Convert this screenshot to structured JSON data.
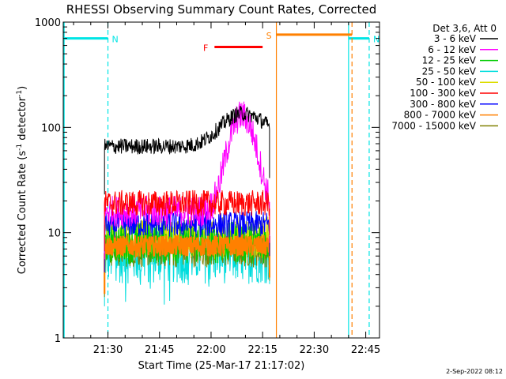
{
  "chart_data": {
    "type": "line",
    "title": "RHESSI Observing Summary Count Rates, Corrected",
    "xlabel": "Start Time (25-Mar-17 21:17:02)",
    "ylabel_main": "Corrected Count Rate (s",
    "ylabel_sup1": "-1",
    "ylabel_mid": " detector",
    "ylabel_sup2": "-1",
    "ylabel_end": ")",
    "ylabel": "Corrected Count Rate (s-1 detector-1)",
    "yscale": "log",
    "ylim": [
      1,
      1000
    ],
    "xlim_minutes": [
      0,
      92
    ],
    "x_ticks": [
      {
        "minute": 13,
        "label": "21:30"
      },
      {
        "minute": 28,
        "label": "21:45"
      },
      {
        "minute": 43,
        "label": "22:00"
      },
      {
        "minute": 58,
        "label": "22:15"
      },
      {
        "minute": 73,
        "label": "22:30"
      },
      {
        "minute": 88,
        "label": "22:45"
      }
    ],
    "y_ticks": [
      {
        "value": 1,
        "label": "1"
      },
      {
        "value": 10,
        "label": "10"
      },
      {
        "value": 100,
        "label": "100"
      },
      {
        "value": 1000,
        "label": "1000"
      }
    ],
    "legend_header": "Det 3,6, Att 0",
    "legend_placement": "right",
    "series": [
      {
        "name": "3 - 6 keV",
        "color": "#000000",
        "level": 66,
        "flare_peak": 135,
        "jitter": 0.03
      },
      {
        "name": "6 - 12 keV",
        "color": "#ff00ff",
        "level": 16,
        "flare_peak": 130,
        "jitter": 0.06
      },
      {
        "name": "12 - 25 keV",
        "color": "#00cc00",
        "level": 8,
        "flare_peak": 8,
        "jitter": 0.08
      },
      {
        "name": "25 - 50 keV",
        "color": "#00dddd",
        "level": 6.5,
        "flare_peak": 6.5,
        "jitter": 0.12
      },
      {
        "name": "50 - 100 keV",
        "color": "#dddd00",
        "level": 9,
        "flare_peak": 9,
        "jitter": 0.08
      },
      {
        "name": "100 - 300 keV",
        "color": "#ff0000",
        "level": 19,
        "flare_peak": 19,
        "jitter": 0.05
      },
      {
        "name": "300 - 800 keV",
        "color": "#0000ff",
        "level": 12,
        "flare_peak": 12,
        "jitter": 0.05
      },
      {
        "name": "800 - 7000 keV",
        "color": "#ff8000",
        "level": 7.5,
        "flare_peak": 7.5,
        "jitter": 0.04
      },
      {
        "name": "7000 - 15000 keV",
        "color": "#808000",
        "level": 7,
        "flare_peak": 7,
        "jitter": 0.07
      }
    ],
    "data_interval_minutes": [
      12,
      60
    ],
    "flare_peak_minute": 52,
    "annotations": [
      {
        "label": "N",
        "color": "#00e5e5",
        "bar": [
          0,
          13
        ],
        "bar_value": 700,
        "dashed_at": 13
      },
      {
        "label": "N",
        "color": "#00e5e5",
        "bar": [
          83,
          89
        ],
        "bar_value": 700,
        "solid_at": 83,
        "dashed_at": 89
      },
      {
        "label": "S",
        "color": "#ff8000",
        "bar": [
          62,
          84
        ],
        "bar_value": 760,
        "solid_at": 62,
        "dashed_at": 84
      },
      {
        "label": "F",
        "color": "#ff0000",
        "bar": [
          44,
          58
        ],
        "bar_value": 580
      }
    ],
    "footer_date": "2-Sep-2022 08:12",
    "grid": false
  }
}
